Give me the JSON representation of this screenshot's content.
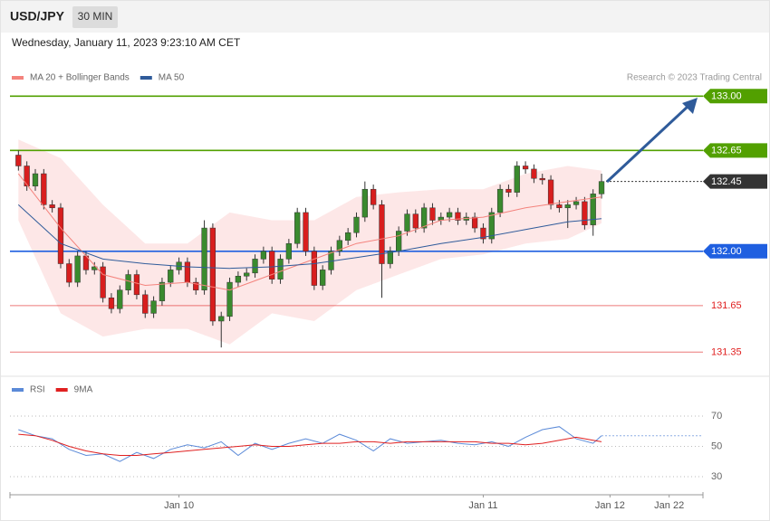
{
  "header": {
    "symbol": "USD/JPY",
    "interval": "30 MIN",
    "timestamp": "Wednesday, January 11, 2023 9:23:10 AM CET"
  },
  "chart_data": [
    {
      "type": "candlestick",
      "credit": "Research © 2023 Trading Central",
      "xlim": [
        -1,
        81
      ],
      "ylim": [
        131.2,
        133.27
      ],
      "up_color": "#3a8a2e",
      "down_color": "#d81e1e",
      "candles": {
        "open": [
          132.62,
          132.55,
          132.42,
          132.5,
          132.3,
          132.28,
          131.92,
          131.8,
          131.97,
          131.88,
          131.9,
          131.7,
          131.63,
          131.75,
          131.85,
          131.72,
          131.6,
          131.68,
          131.8,
          131.88,
          131.93,
          131.8,
          131.75,
          132.15,
          131.55,
          131.58,
          131.8,
          131.84,
          131.86,
          131.95,
          132.0,
          131.82,
          131.95,
          132.05,
          132.25,
          132.0,
          131.78,
          131.88,
          132.0,
          132.07,
          132.12,
          132.22,
          132.4,
          132.3,
          131.92,
          132.0,
          132.13,
          132.24,
          132.15,
          132.28,
          132.2,
          132.22,
          132.25,
          132.2,
          132.22,
          132.15,
          132.08,
          132.25,
          132.4,
          132.38,
          132.55,
          132.53,
          132.47,
          132.46,
          132.3,
          132.28,
          132.3,
          132.32,
          132.17,
          132.37
        ],
        "high": [
          132.65,
          132.58,
          132.53,
          132.53,
          132.33,
          132.31,
          131.95,
          132.0,
          132.0,
          131.93,
          131.93,
          131.73,
          131.78,
          131.88,
          131.88,
          131.75,
          131.71,
          131.83,
          131.91,
          131.96,
          131.96,
          131.83,
          132.2,
          132.18,
          131.61,
          131.83,
          131.87,
          131.89,
          131.98,
          132.03,
          132.03,
          131.98,
          132.08,
          132.28,
          132.28,
          132.03,
          131.91,
          132.03,
          132.1,
          132.15,
          132.25,
          132.45,
          132.43,
          132.33,
          132.03,
          132.16,
          132.27,
          132.27,
          132.31,
          132.31,
          132.25,
          132.28,
          132.28,
          132.25,
          132.25,
          132.18,
          132.28,
          132.43,
          132.43,
          132.58,
          132.58,
          132.56,
          132.5,
          132.49,
          132.33,
          132.33,
          132.35,
          132.35,
          132.4,
          132.5
        ],
        "low": [
          132.52,
          132.39,
          132.39,
          132.27,
          132.25,
          131.89,
          131.77,
          131.77,
          131.85,
          131.85,
          131.67,
          131.6,
          131.6,
          131.72,
          131.69,
          131.57,
          131.57,
          131.65,
          131.77,
          131.85,
          131.77,
          131.72,
          131.72,
          131.52,
          131.38,
          131.55,
          131.77,
          131.81,
          131.83,
          131.92,
          131.79,
          131.79,
          131.92,
          132.02,
          131.97,
          131.75,
          131.75,
          131.85,
          131.97,
          132.04,
          132.09,
          132.19,
          132.27,
          131.7,
          131.89,
          131.97,
          132.1,
          132.12,
          132.12,
          132.17,
          132.17,
          132.19,
          132.17,
          132.17,
          132.12,
          132.05,
          132.05,
          132.22,
          132.35,
          132.35,
          132.5,
          132.44,
          132.43,
          132.27,
          132.25,
          132.15,
          132.27,
          132.14,
          132.1,
          132.34
        ],
        "close": [
          132.55,
          132.42,
          132.5,
          132.3,
          132.28,
          131.92,
          131.8,
          131.97,
          131.88,
          131.9,
          131.7,
          131.63,
          131.75,
          131.85,
          131.72,
          131.6,
          131.68,
          131.8,
          131.88,
          131.93,
          131.8,
          131.75,
          132.15,
          131.55,
          131.58,
          131.8,
          131.84,
          131.86,
          131.95,
          132.0,
          131.82,
          131.95,
          132.05,
          132.25,
          132.0,
          131.78,
          131.88,
          132.0,
          132.07,
          132.12,
          132.22,
          132.4,
          132.3,
          131.92,
          132.0,
          132.13,
          132.24,
          132.15,
          132.28,
          132.2,
          132.22,
          132.25,
          132.2,
          132.22,
          132.15,
          132.08,
          132.25,
          132.4,
          132.38,
          132.55,
          132.53,
          132.47,
          132.46,
          132.3,
          132.28,
          132.3,
          132.32,
          132.17,
          132.37,
          132.45
        ]
      },
      "series": [
        {
          "name": "MA 20 + Bollinger Bands",
          "color": "#f4837d",
          "band_color": "#fde3e3",
          "x": [
            0,
            5,
            10,
            15,
            20,
            25,
            30,
            35,
            40,
            45,
            50,
            55,
            60,
            65,
            69
          ],
          "values": [
            132.5,
            132.15,
            131.85,
            131.78,
            131.8,
            131.75,
            131.85,
            131.95,
            132.05,
            132.1,
            132.2,
            132.22,
            132.28,
            132.32,
            132.35
          ],
          "upper": [
            132.72,
            132.6,
            132.3,
            132.05,
            132.05,
            132.25,
            132.2,
            132.2,
            132.35,
            132.38,
            132.4,
            132.4,
            132.5,
            132.55,
            132.52
          ],
          "lower": [
            132.2,
            131.6,
            131.45,
            131.5,
            131.5,
            131.4,
            131.6,
            131.55,
            131.75,
            131.85,
            131.95,
            131.98,
            132.05,
            132.08,
            132.18
          ]
        },
        {
          "name": "MA 50",
          "color": "#2f5b9a",
          "x": [
            0,
            5,
            10,
            15,
            20,
            25,
            30,
            35,
            40,
            45,
            50,
            55,
            60,
            65,
            69
          ],
          "values": [
            132.3,
            132.05,
            131.95,
            131.92,
            131.9,
            131.89,
            131.9,
            131.92,
            131.96,
            132.0,
            132.05,
            132.09,
            132.14,
            132.19,
            132.21
          ]
        }
      ],
      "levels": [
        {
          "value": 133,
          "label": "133.00",
          "color": "#52a000",
          "tag": true,
          "line": "solid"
        },
        {
          "value": 132.65,
          "label": "132.65",
          "color": "#52a000",
          "tag": true,
          "line": "solid"
        },
        {
          "value": 132.45,
          "label": "132.45",
          "color": "#333333",
          "tag": true,
          "line": "dotted"
        },
        {
          "value": 132,
          "label": "132.00",
          "color": "#1f5fe0",
          "tag": true,
          "line": "solid"
        },
        {
          "value": 131.65,
          "label": "131.65",
          "color": "#e02020",
          "tag": false,
          "line": "solid"
        },
        {
          "value": 131.35,
          "label": "131.35",
          "color": "#e02020",
          "tag": false,
          "line": "solid"
        }
      ]
    },
    {
      "type": "line",
      "xlim": [
        -1,
        81
      ],
      "ylim": [
        19.25,
        81.9
      ],
      "yticks": [
        70,
        50,
        30
      ],
      "xticks": [
        {
          "value": 19,
          "label": "Jan 10"
        },
        {
          "value": 55,
          "label": "Jan 11"
        },
        {
          "value": 70,
          "label": "Jan 12"
        },
        {
          "value": 77,
          "label": "Jan 22"
        }
      ],
      "series": [
        {
          "name": "RSI",
          "color": "#5b8ad8",
          "x": [
            0,
            2,
            4,
            6,
            8,
            10,
            12,
            14,
            16,
            18,
            20,
            22,
            24,
            26,
            28,
            30,
            32,
            34,
            36,
            38,
            40,
            42,
            44,
            46,
            48,
            50,
            52,
            54,
            56,
            58,
            60,
            62,
            64,
            66,
            68,
            69
          ],
          "values": [
            61,
            57,
            55,
            48,
            44,
            45,
            40,
            46,
            42,
            48,
            51,
            49,
            53,
            44,
            52,
            48,
            52,
            55,
            52,
            58,
            54,
            47,
            55,
            52,
            53,
            54,
            52,
            51,
            53,
            50,
            56,
            61,
            63,
            55,
            52,
            57
          ]
        },
        {
          "name": "9MA",
          "color": "#e02020",
          "x": [
            0,
            2,
            4,
            6,
            8,
            10,
            12,
            14,
            16,
            18,
            20,
            22,
            24,
            26,
            28,
            30,
            32,
            34,
            36,
            38,
            40,
            42,
            44,
            46,
            48,
            50,
            52,
            54,
            56,
            58,
            60,
            62,
            64,
            66,
            68,
            69
          ],
          "values": [
            58,
            57,
            54,
            50,
            47,
            45,
            44,
            44,
            45,
            46,
            47,
            48,
            49,
            50,
            51,
            50,
            50,
            51,
            52,
            52,
            53,
            53,
            52,
            53,
            53,
            53,
            53,
            53,
            52,
            52,
            51,
            52,
            54,
            56,
            54,
            53
          ]
        }
      ]
    }
  ]
}
